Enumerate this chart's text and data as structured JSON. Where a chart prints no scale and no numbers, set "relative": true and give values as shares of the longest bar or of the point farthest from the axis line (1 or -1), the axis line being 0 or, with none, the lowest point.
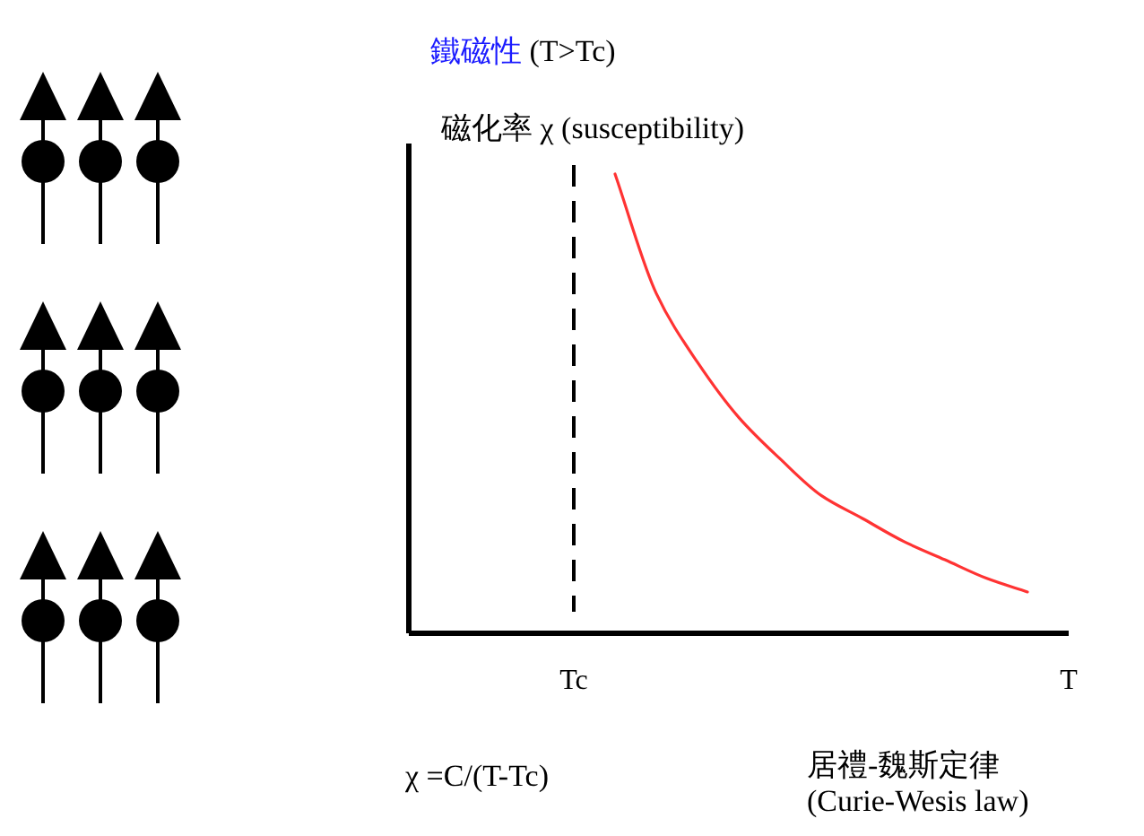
{
  "chart_data": {
    "type": "line",
    "title": "鐵磁性 (T>Tc)",
    "ylabel": "磁化率 χ (susceptibility)",
    "annotations": [
      "χ =C/(T-Tc)",
      "居禮-魏斯定律\n(Curie-Wesis law)"
    ],
    "categories": [
      null,
      null,
      null,
      null,
      "Tc",
      null,
      null,
      null,
      null,
      null,
      null,
      null,
      null,
      null,
      null,
      null,
      "T"
    ],
    "series": [
      {
        "color": "#ff3333",
        "values": [
          null,
          null,
          null,
          null,
          null,
          1,
          0.74,
          0.59,
          0.47,
          0.38,
          0.3,
          0.25,
          0.2,
          0.16,
          0.12,
          0.09,
          null
        ]
      }
    ],
    "relative": true,
    "ref_lines": [
      {
        "axis": "x",
        "value": "Tc",
        "color": "#000000",
        "line_style": "dashed"
      }
    ]
  }
}
